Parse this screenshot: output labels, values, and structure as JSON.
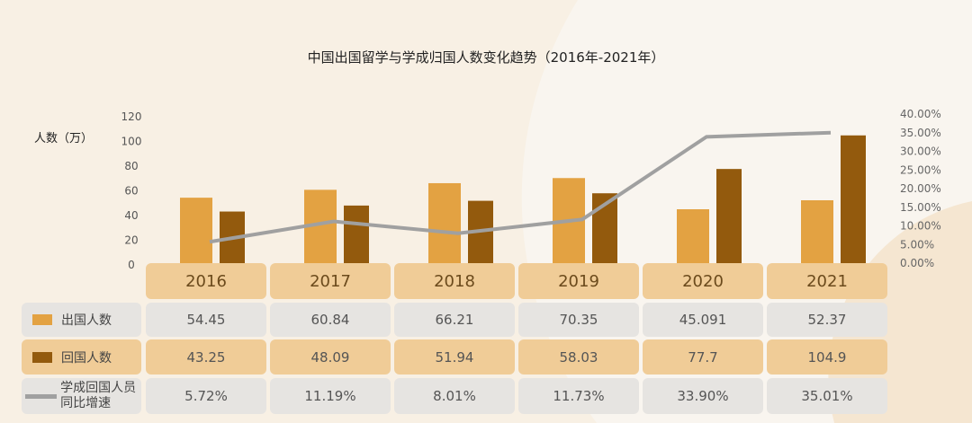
{
  "chart_data": {
    "type": "bar",
    "title": "中国出国留学与学成归国人数变化趋势（2016年-2021年）",
    "ylabel": "人数（万）",
    "ylim": [
      0,
      120
    ],
    "y_ticks": [
      "0",
      "20",
      "40",
      "60",
      "80",
      "100",
      "120"
    ],
    "y2lim": [
      0,
      40
    ],
    "y2_ticks": [
      "0.00%",
      "5.00%",
      "10.00%",
      "15.00%",
      "20.00%",
      "25.00%",
      "30.00%",
      "35.00%",
      "40.00%"
    ],
    "categories": [
      "2016",
      "2017",
      "2018",
      "2019",
      "2020",
      "2021"
    ],
    "series": [
      {
        "name": "出国人数",
        "type": "bar",
        "color": "#e3a242",
        "values": [
          54.45,
          60.84,
          66.21,
          70.35,
          45.091,
          52.37
        ],
        "labels": [
          "54.45",
          "60.84",
          "66.21",
          "70.35",
          "45.091",
          "52.37"
        ]
      },
      {
        "name": "回国人数",
        "type": "bar",
        "color": "#935a0d",
        "values": [
          43.25,
          48.09,
          51.94,
          58.03,
          77.7,
          104.9
        ],
        "labels": [
          "43.25",
          "48.09",
          "51.94",
          "58.03",
          "77.7",
          "104.9"
        ]
      },
      {
        "name": "学成回国人员同比增速",
        "type": "line",
        "axis": "right",
        "color": "#a0a0a0",
        "values": [
          5.72,
          11.19,
          8.01,
          11.73,
          33.9,
          35.01
        ],
        "labels": [
          "5.72%",
          "11.19%",
          "8.01%",
          "11.73%",
          "33.90%",
          "35.01%"
        ]
      }
    ],
    "legend_placement": "table-left"
  }
}
